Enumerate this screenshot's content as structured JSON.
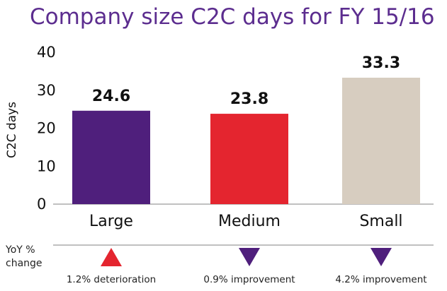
{
  "chart_data": {
    "type": "bar",
    "title": "Company size C2C days for FY 15/16",
    "ylabel": "C2C days",
    "xlabel": "",
    "ylim": [
      0,
      40
    ],
    "yticks": [
      0,
      10,
      20,
      30,
      40
    ],
    "grid": false,
    "categories": [
      "Large",
      "Medium",
      "Small"
    ],
    "values": [
      24.6,
      23.8,
      33.3
    ],
    "data_labels": [
      "24.6",
      "23.8",
      "33.3"
    ],
    "colors": [
      "#4f1f7c",
      "#e4252f",
      "#d7cdc0"
    ],
    "yoy": {
      "label_line1": "YoY %",
      "label_line2": "change",
      "items": [
        {
          "direction": "up",
          "color": "#e4252f",
          "text": "1.2% deterioration"
        },
        {
          "direction": "down",
          "color": "#4f1f7c",
          "text": "0.9% improvement"
        },
        {
          "direction": "down",
          "color": "#4f1f7c",
          "text": "4.2% improvement"
        }
      ]
    }
  }
}
